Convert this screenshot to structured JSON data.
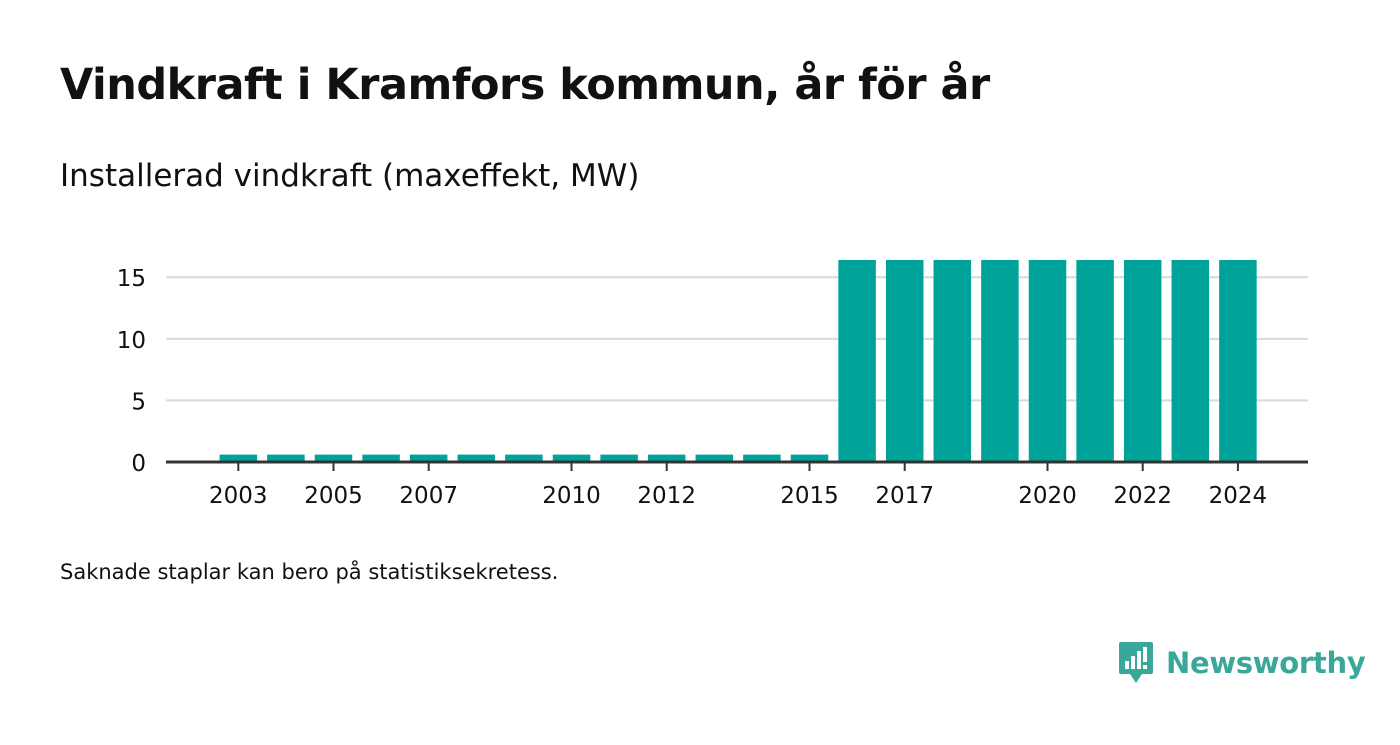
{
  "header": {
    "title": "Vindkraft i Kramfors kommun, år för år",
    "subtitle": "Installerad vindkraft (maxeffekt, MW)"
  },
  "footer": {
    "note": "Saknade staplar kan bero på statistiksekretess.",
    "brand": "Newsworthy",
    "brand_icon": "newsworthy-logo-icon"
  },
  "colors": {
    "bar": "#00a39a",
    "grid": "#d9d9d9",
    "axis": "#333333",
    "text": "#111111",
    "brand": "#3aa79b"
  },
  "chart_data": {
    "type": "bar",
    "categories": [
      "2003",
      "2004",
      "2005",
      "2006",
      "2007",
      "2008",
      "2009",
      "2010",
      "2011",
      "2012",
      "2013",
      "2014",
      "2015",
      "2016",
      "2017",
      "2018",
      "2019",
      "2020",
      "2021",
      "2022",
      "2023",
      "2024"
    ],
    "values": [
      0.6,
      0.6,
      0.6,
      0.6,
      0.6,
      0.6,
      0.6,
      0.6,
      0.6,
      0.6,
      0.6,
      0.6,
      0.6,
      16.4,
      16.4,
      16.4,
      16.4,
      16.4,
      16.4,
      16.4,
      16.4,
      16.4
    ],
    "x_tick_labels": [
      "2003",
      "2005",
      "2007",
      "2010",
      "2012",
      "2015",
      "2017",
      "2020",
      "2022",
      "2024"
    ],
    "y_ticks": [
      0,
      5,
      10,
      15
    ],
    "ylim": [
      0,
      16.4
    ],
    "title": "Vindkraft i Kramfors kommun, år för år",
    "xlabel": "",
    "ylabel": "",
    "grid": true,
    "legend": "none"
  }
}
